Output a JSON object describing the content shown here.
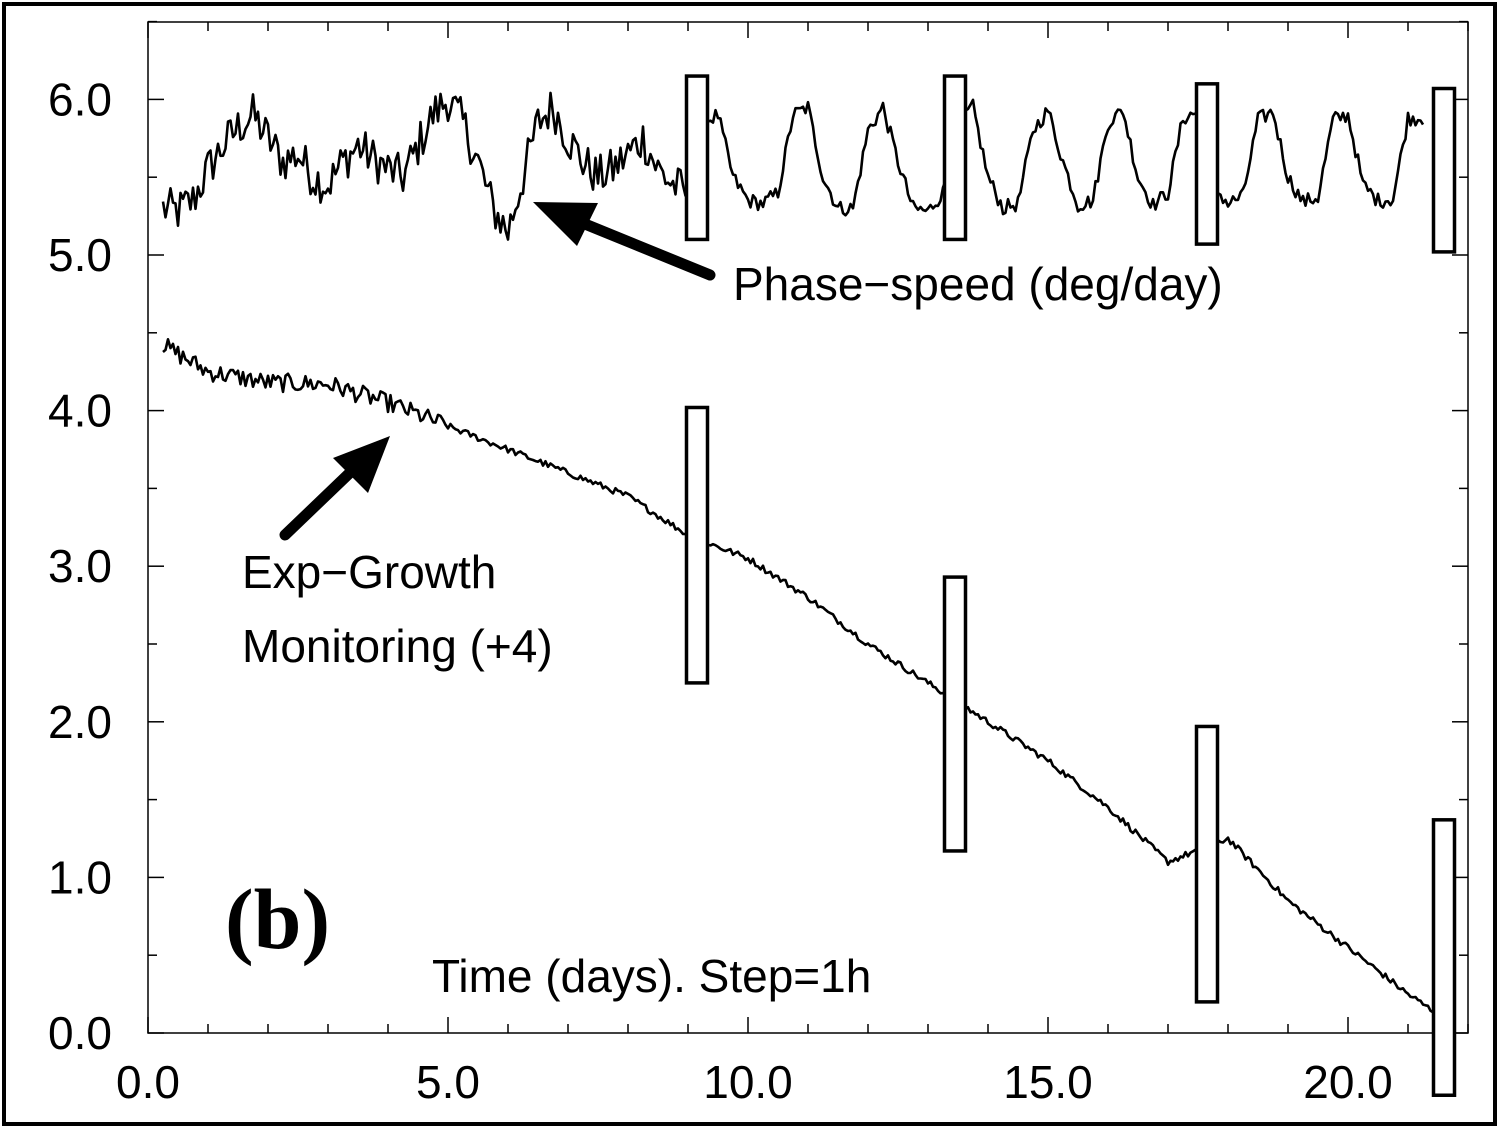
{
  "chart_data": {
    "type": "line",
    "panel_label": "(b)",
    "xlabel": "Time (days).  Step=1h",
    "ylabel": "",
    "xlim": [
      0.0,
      22.0
    ],
    "ylim": [
      0.0,
      6.5
    ],
    "x_ticks": [
      {
        "value": 0.0,
        "label": "0.0"
      },
      {
        "value": 5.0,
        "label": "5.0"
      },
      {
        "value": 10.0,
        "label": "10.0"
      },
      {
        "value": 15.0,
        "label": "15.0"
      },
      {
        "value": 20.0,
        "label": "20.0"
      }
    ],
    "y_ticks": [
      {
        "value": 0.0,
        "label": "0.0"
      },
      {
        "value": 1.0,
        "label": "1.0"
      },
      {
        "value": 2.0,
        "label": "2.0"
      },
      {
        "value": 3.0,
        "label": "3.0"
      },
      {
        "value": 4.0,
        "label": "4.0"
      },
      {
        "value": 5.0,
        "label": "5.0"
      },
      {
        "value": 6.0,
        "label": "6.0"
      }
    ],
    "grid": false,
    "series": [
      {
        "key": "phase_speed",
        "x": [
          0.25,
          0.5,
          0.75,
          1.0,
          1.25,
          1.5,
          1.75,
          2.0,
          2.25,
          2.5,
          2.75,
          3.0,
          3.25,
          3.5,
          3.75,
          4.0,
          4.25,
          4.5,
          4.75,
          5.0,
          5.25,
          5.5,
          5.75,
          6.0,
          6.25,
          6.5,
          6.75,
          7.0,
          7.25,
          7.5,
          7.75,
          8.0,
          8.25,
          8.5,
          8.75,
          9.0,
          9.25,
          9.5,
          9.75,
          10.0,
          10.25,
          10.5,
          10.75,
          11.0,
          11.25,
          11.5,
          11.75,
          12.0,
          12.25,
          12.5,
          12.75,
          13.0,
          13.25,
          13.5,
          13.75,
          14.0,
          14.25,
          14.5,
          14.75,
          15.0,
          15.25,
          15.5,
          15.75,
          16.0,
          16.25,
          16.5,
          16.75,
          17.0,
          17.25,
          17.5,
          17.75,
          18.0,
          18.25,
          18.5,
          18.75,
          19.0,
          19.25,
          19.5,
          19.75,
          20.0,
          20.25,
          20.5,
          20.75,
          21.0,
          21.25
        ],
        "y": [
          5.3,
          5.28,
          5.35,
          5.55,
          5.7,
          5.82,
          5.9,
          5.75,
          5.6,
          5.65,
          5.5,
          5.45,
          5.6,
          5.7,
          5.62,
          5.55,
          5.5,
          5.7,
          5.9,
          6.0,
          5.85,
          5.6,
          5.3,
          5.15,
          5.5,
          5.85,
          5.95,
          5.75,
          5.6,
          5.5,
          5.55,
          5.65,
          5.75,
          5.55,
          5.45,
          5.4,
          5.85,
          5.9,
          5.5,
          5.35,
          5.33,
          5.4,
          5.9,
          5.95,
          5.5,
          5.3,
          5.3,
          5.8,
          5.95,
          5.6,
          5.3,
          5.28,
          5.4,
          5.85,
          5.95,
          5.5,
          5.3,
          5.33,
          5.8,
          5.93,
          5.6,
          5.32,
          5.35,
          5.85,
          5.93,
          5.5,
          5.32,
          5.4,
          5.88,
          5.92,
          5.45,
          5.33,
          5.38,
          5.87,
          5.92,
          5.5,
          5.34,
          5.37,
          5.87,
          5.9,
          5.45,
          5.35,
          5.36,
          5.88,
          5.88
        ],
        "noise_until": 9.0,
        "noise_amp": 0.14
      },
      {
        "key": "exp_growth",
        "x": [
          0.25,
          1.0,
          2.0,
          3.0,
          4.0,
          5.0,
          6.0,
          7.0,
          8.0,
          9.0,
          10.0,
          11.0,
          12.0,
          13.0,
          14.0,
          15.0,
          16.0,
          17.0,
          18.0,
          19.0,
          20.0,
          21.0,
          21.5
        ],
        "y": [
          4.42,
          4.25,
          4.18,
          4.17,
          4.05,
          3.9,
          3.75,
          3.6,
          3.45,
          3.2,
          3.05,
          2.8,
          2.5,
          2.25,
          2.0,
          1.75,
          1.45,
          1.1,
          1.25,
          0.85,
          0.55,
          0.25,
          0.12
        ],
        "noise_until": 5.0,
        "noise_amp": 0.06
      }
    ],
    "bars": [
      {
        "x": 9.15,
        "y_low": 5.1,
        "y_high": 6.15
      },
      {
        "x": 13.45,
        "y_low": 5.1,
        "y_high": 6.15
      },
      {
        "x": 17.65,
        "y_low": 5.07,
        "y_high": 6.1
      },
      {
        "x": 21.6,
        "y_low": 5.02,
        "y_high": 6.07
      },
      {
        "x": 9.15,
        "y_low": 2.25,
        "y_high": 4.02
      },
      {
        "x": 13.45,
        "y_low": 1.17,
        "y_high": 2.93
      },
      {
        "x": 17.65,
        "y_low": 0.2,
        "y_high": 1.97
      },
      {
        "x": 21.6,
        "y_low": -0.4,
        "y_high": 1.37
      }
    ],
    "annotations": [
      {
        "text": "Phase−speed (deg/day)",
        "target_series": "phase_speed"
      },
      {
        "text_lines": [
          "Exp−Growth",
          "Monitoring (+4)"
        ],
        "target_series": "exp_growth"
      }
    ]
  }
}
